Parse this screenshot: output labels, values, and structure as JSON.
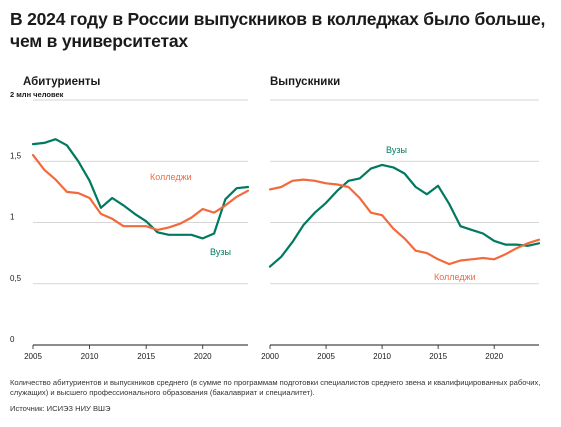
{
  "title": "В 2024 году в России выпускников в колледжах было больше, чем в университетах",
  "footnote": "Количество абитуриентов и выпускников среднего (в сумме по программам подготовки специалистов среднего звена и квалифицированных рабочих, служащих) и высшего профессионального образования (бакалавриат и специалитет).",
  "source": "Источник: ИСИЭЗ НИУ ВШЭ",
  "colors": {
    "universities": "#007a5e",
    "colleges": "#f26a3b",
    "grid": "#c9c9c9",
    "axis": "#1a1a1a"
  },
  "chart_data": [
    {
      "type": "line",
      "title": "Абитуриенты",
      "ylabel": "2 млн человек",
      "ylim": [
        0,
        2
      ],
      "yticks": [
        0,
        0.5,
        1,
        1.5
      ],
      "ytick_labels": [
        "0",
        "0,5",
        "1",
        "1,5"
      ],
      "xlim": [
        2005,
        2024
      ],
      "xticks": [
        2005,
        2010,
        2015,
        2020
      ],
      "grid": true,
      "series": [
        {
          "name": "Вузы",
          "color": "#007a5e",
          "x": [
            2005,
            2006,
            2007,
            2008,
            2009,
            2010,
            2011,
            2012,
            2013,
            2014,
            2015,
            2016,
            2017,
            2018,
            2019,
            2020,
            2021,
            2022,
            2023,
            2024
          ],
          "values": [
            1.64,
            1.65,
            1.68,
            1.63,
            1.5,
            1.34,
            1.12,
            1.2,
            1.14,
            1.07,
            1.01,
            0.92,
            0.9,
            0.9,
            0.9,
            0.87,
            0.91,
            1.19,
            1.28,
            1.29
          ]
        },
        {
          "name": "Колледжи",
          "color": "#f26a3b",
          "x": [
            2005,
            2006,
            2007,
            2008,
            2009,
            2010,
            2011,
            2012,
            2013,
            2014,
            2015,
            2016,
            2017,
            2018,
            2019,
            2020,
            2021,
            2022,
            2023,
            2024
          ],
          "values": [
            1.55,
            1.43,
            1.35,
            1.25,
            1.24,
            1.2,
            1.07,
            1.03,
            0.97,
            0.97,
            0.97,
            0.94,
            0.96,
            0.99,
            1.04,
            1.11,
            1.08,
            1.14,
            1.21,
            1.26
          ]
        }
      ]
    },
    {
      "type": "line",
      "title": "Выпускники",
      "ylim": [
        0,
        2
      ],
      "xlim": [
        2000,
        2024
      ],
      "xticks": [
        2000,
        2005,
        2010,
        2015,
        2020
      ],
      "grid": true,
      "series": [
        {
          "name": "Вузы",
          "color": "#007a5e",
          "x": [
            2000,
            2001,
            2002,
            2003,
            2004,
            2005,
            2006,
            2007,
            2008,
            2009,
            2010,
            2011,
            2012,
            2013,
            2014,
            2015,
            2016,
            2017,
            2018,
            2019,
            2020,
            2021,
            2022,
            2023,
            2024
          ],
          "values": [
            0.64,
            0.72,
            0.84,
            0.98,
            1.08,
            1.16,
            1.26,
            1.34,
            1.36,
            1.44,
            1.47,
            1.45,
            1.4,
            1.29,
            1.23,
            1.3,
            1.15,
            0.97,
            0.94,
            0.91,
            0.85,
            0.82,
            0.82,
            0.81,
            0.83
          ]
        },
        {
          "name": "Колледжи",
          "color": "#f26a3b",
          "x": [
            2000,
            2001,
            2002,
            2003,
            2004,
            2005,
            2006,
            2007,
            2008,
            2009,
            2010,
            2011,
            2012,
            2013,
            2014,
            2015,
            2016,
            2017,
            2018,
            2019,
            2020,
            2021,
            2022,
            2023,
            2024
          ],
          "values": [
            1.27,
            1.29,
            1.34,
            1.35,
            1.34,
            1.32,
            1.31,
            1.29,
            1.2,
            1.08,
            1.06,
            0.95,
            0.87,
            0.77,
            0.75,
            0.7,
            0.66,
            0.69,
            0.7,
            0.71,
            0.7,
            0.74,
            0.79,
            0.83,
            0.86
          ]
        }
      ]
    }
  ]
}
